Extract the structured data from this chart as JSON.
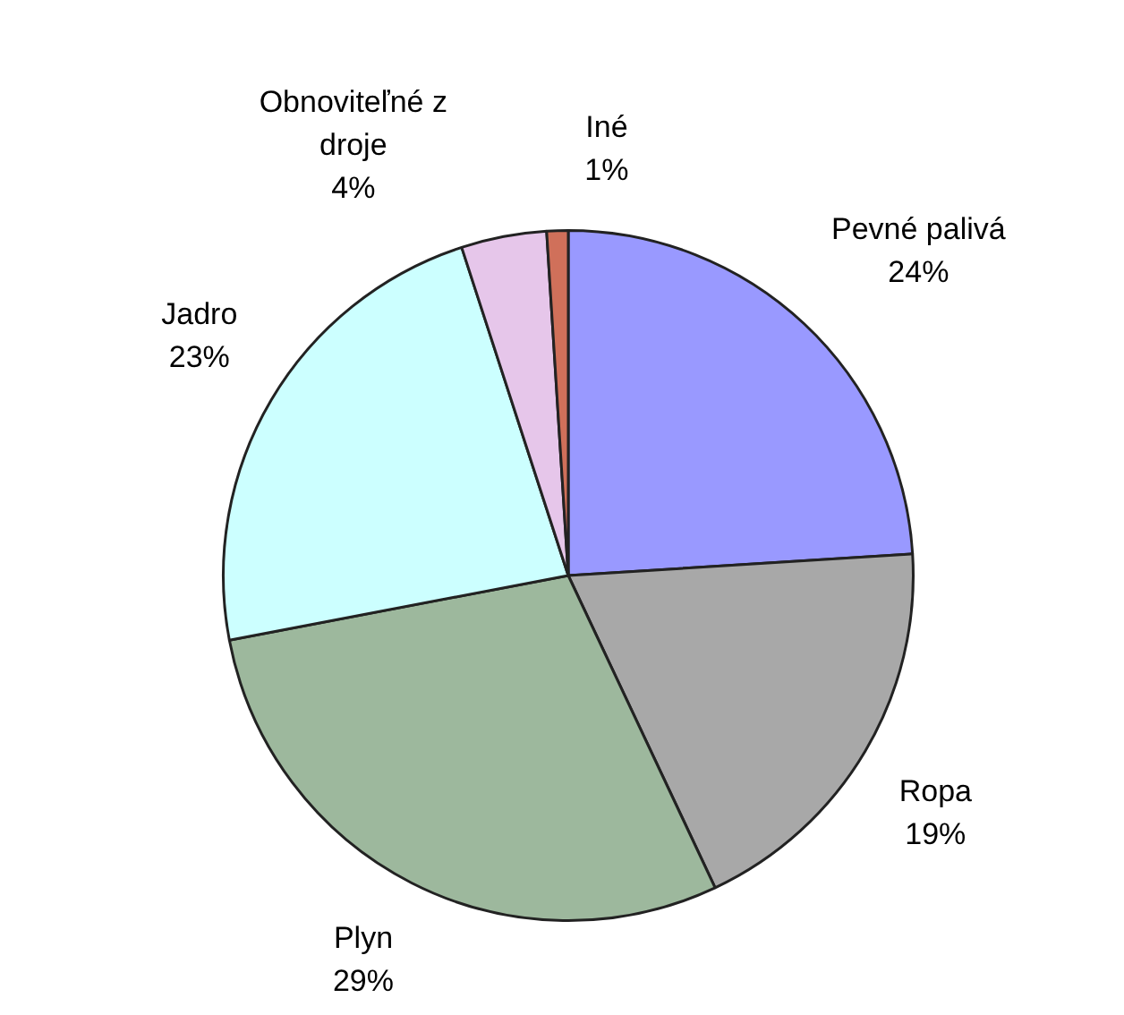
{
  "chart_data": {
    "type": "pie",
    "categories": [
      "Pevné palivá",
      "Ropa",
      "Plyn",
      "Jadro",
      "Obnoviteľné z droje",
      "Iné"
    ],
    "values": [
      24,
      19,
      29,
      23,
      4,
      1
    ],
    "value_labels": [
      "24%",
      "19%",
      "29%",
      "23%",
      "4%",
      "1%"
    ],
    "colors": [
      "#9999ff",
      "#a8a8a8",
      "#9db89d",
      "#ccffff",
      "#e6c6ea",
      "#d0705a"
    ],
    "legend": false
  }
}
